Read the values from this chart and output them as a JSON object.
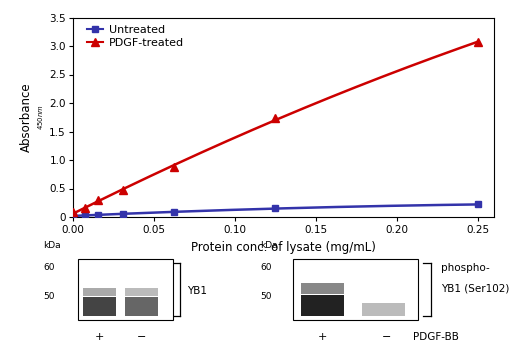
{
  "untreated_x": [
    0.0,
    0.0078,
    0.0156,
    0.03125,
    0.0625,
    0.125,
    0.25
  ],
  "untreated_y": [
    0.02,
    0.03,
    0.04,
    0.05,
    0.09,
    0.15,
    0.22
  ],
  "pdgf_x": [
    0.0,
    0.0078,
    0.0156,
    0.03125,
    0.0625,
    0.125,
    0.25
  ],
  "pdgf_y": [
    0.08,
    0.15,
    0.3,
    0.47,
    0.88,
    1.73,
    3.07
  ],
  "untreated_color": "#3333aa",
  "pdgf_color": "#cc0000",
  "xlim": [
    0,
    0.26
  ],
  "ylim": [
    0,
    3.5
  ],
  "xticks": [
    0.0,
    0.05,
    0.1,
    0.15,
    0.2,
    0.25
  ],
  "yticks": [
    0.0,
    0.5,
    1.0,
    1.5,
    2.0,
    2.5,
    3.0,
    3.5
  ],
  "xlabel": "Protein conc. of lysate (mg/mL)",
  "ylabel_main": "Absorbance",
  "ylabel_sub": "450nm",
  "legend_untreated": "Untreated",
  "legend_pdgf": "PDGF-treated",
  "background_color": "#ffffff"
}
